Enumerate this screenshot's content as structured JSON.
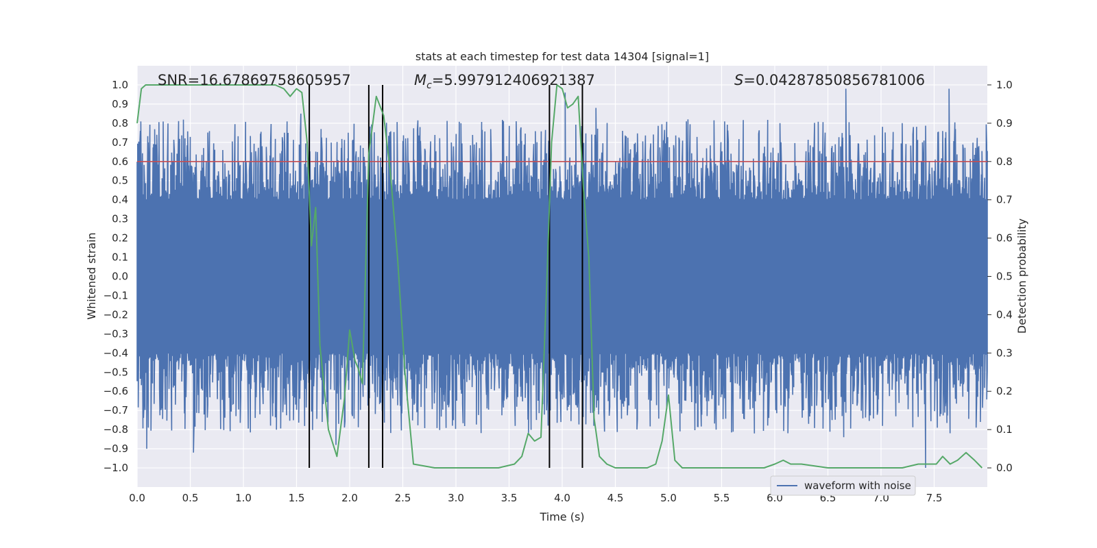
{
  "chart_data": {
    "type": "line",
    "title": "stats at each timestep for test data 14304 [signal=1]",
    "xlabel": "Time (s)",
    "ylabel": "Whitened strain",
    "y2label": "Detection probability",
    "xlim": [
      0.0,
      8.0
    ],
    "ylim": [
      -1.1,
      1.1
    ],
    "y2lim": [
      -0.05,
      1.05
    ],
    "xticks": [
      0.0,
      0.5,
      1.0,
      1.5,
      2.0,
      2.5,
      3.0,
      3.5,
      4.0,
      4.5,
      5.0,
      5.5,
      6.0,
      6.5,
      7.0,
      7.5
    ],
    "xtick_labels": [
      "0.0",
      "0.5",
      "1.0",
      "1.5",
      "2.0",
      "2.5",
      "3.0",
      "3.5",
      "4.0",
      "4.5",
      "5.0",
      "5.5",
      "6.0",
      "6.5",
      "7.0",
      "7.5"
    ],
    "yticks": [
      1.0,
      0.9,
      0.8,
      0.7,
      0.6,
      0.5,
      0.4,
      0.3,
      0.2,
      0.1,
      0.0,
      -0.1,
      -0.2,
      -0.3,
      -0.4,
      -0.5,
      -0.6,
      -0.7,
      -0.8,
      -0.9,
      -1.0
    ],
    "ytick_labels": [
      "1.0",
      "0.9",
      "0.8",
      "0.7",
      "0.6",
      "0.5",
      "0.4",
      "0.3",
      "0.2",
      "0.1",
      "0.0",
      "−0.1",
      "−0.2",
      "−0.3",
      "−0.4",
      "−0.5",
      "−0.6",
      "−0.7",
      "−0.8",
      "−0.9",
      "−1.0"
    ],
    "y2ticks": [
      1.0,
      0.9,
      0.8,
      0.7,
      0.6,
      0.5,
      0.4,
      0.3,
      0.2,
      0.1,
      0.0
    ],
    "y2tick_labels": [
      "1.0",
      "0.9",
      "0.8",
      "0.7",
      "0.6",
      "0.5",
      "0.4",
      "0.3",
      "0.2",
      "0.1",
      "0.0"
    ],
    "grid": true,
    "legend": {
      "entries": [
        "waveform with noise"
      ],
      "placement": "lower-right"
    },
    "annotations": {
      "snr": "SNR=16.67869758605957",
      "mc_symbol": "M",
      "mc_sub": "c",
      "mc_value": "=5.997912406921387",
      "s_symbol": "S",
      "s_value": "=0.04287850856781006"
    },
    "threshold": 0.8,
    "event_markers": [
      1.62,
      2.18,
      2.31,
      3.88,
      4.19
    ],
    "marker_y_range": [
      -1.0,
      1.0
    ],
    "waveform": {
      "name": "waveform with noise",
      "color": "#4c72b0",
      "core_amplitude": 0.4,
      "notable_peaks": [
        {
          "t": 0.03,
          "v": 0.76
        },
        {
          "t": 1.54,
          "v": 0.85
        },
        {
          "t": 2.66,
          "v": 0.78
        },
        {
          "t": 4.03,
          "v": 0.96
        },
        {
          "t": 4.32,
          "v": 0.88
        },
        {
          "t": 4.57,
          "v": 0.76
        },
        {
          "t": 5.17,
          "v": 0.81
        },
        {
          "t": 6.67,
          "v": 0.98
        },
        {
          "t": 7.64,
          "v": 0.98
        },
        {
          "t": 7.42,
          "v": -1.0
        },
        {
          "t": 0.53,
          "v": -0.92
        },
        {
          "t": 0.09,
          "v": -0.9
        },
        {
          "t": 1.87,
          "v": -0.88
        },
        {
          "t": 6.65,
          "v": -0.84
        },
        {
          "t": 5.81,
          "v": -0.82
        }
      ]
    },
    "probability": {
      "color": "#55a868",
      "x": [
        0.0,
        0.04,
        0.08,
        0.15,
        0.3,
        0.5,
        0.7,
        0.9,
        1.1,
        1.3,
        1.38,
        1.44,
        1.5,
        1.55,
        1.6,
        1.64,
        1.68,
        1.72,
        1.8,
        1.88,
        1.95,
        2.0,
        2.05,
        2.08,
        2.12,
        2.18,
        2.25,
        2.32,
        2.38,
        2.45,
        2.52,
        2.6,
        2.8,
        3.0,
        3.2,
        3.4,
        3.55,
        3.62,
        3.68,
        3.74,
        3.8,
        3.85,
        3.9,
        3.95,
        4.0,
        4.05,
        4.1,
        4.15,
        4.2,
        4.25,
        4.3,
        4.35,
        4.42,
        4.5,
        4.6,
        4.8,
        4.88,
        4.94,
        5.0,
        5.06,
        5.13,
        5.3,
        5.6,
        5.9,
        6.0,
        6.08,
        6.15,
        6.25,
        6.5,
        6.8,
        7.0,
        7.2,
        7.35,
        7.45,
        7.52,
        7.58,
        7.65,
        7.72,
        7.8,
        7.88,
        7.95
      ],
      "y": [
        0.9,
        0.99,
        1.0,
        1.0,
        1.0,
        1.0,
        1.0,
        1.0,
        1.0,
        1.0,
        0.99,
        0.97,
        0.99,
        0.98,
        0.85,
        0.58,
        0.68,
        0.32,
        0.1,
        0.03,
        0.18,
        0.36,
        0.28,
        0.26,
        0.22,
        0.82,
        0.97,
        0.92,
        0.78,
        0.55,
        0.25,
        0.01,
        0.0,
        0.0,
        0.0,
        0.0,
        0.01,
        0.03,
        0.09,
        0.07,
        0.08,
        0.45,
        0.85,
        1.0,
        0.99,
        0.94,
        0.95,
        0.97,
        0.73,
        0.55,
        0.13,
        0.03,
        0.01,
        0.0,
        0.0,
        0.0,
        0.01,
        0.07,
        0.19,
        0.02,
        0.0,
        0.0,
        0.0,
        0.0,
        0.01,
        0.02,
        0.01,
        0.01,
        0.0,
        0.0,
        0.0,
        0.0,
        0.01,
        0.01,
        0.01,
        0.03,
        0.01,
        0.02,
        0.04,
        0.02,
        0.0
      ]
    }
  }
}
